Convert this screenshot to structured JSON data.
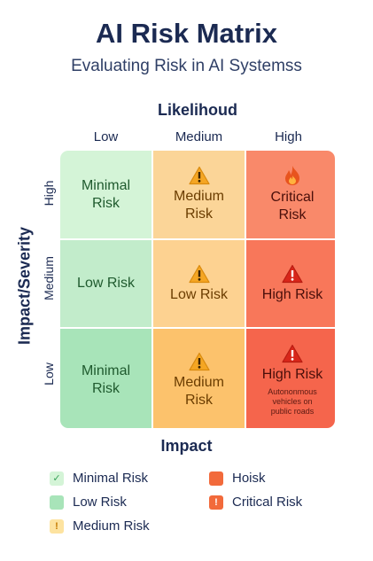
{
  "header": {
    "title": "AI Risk Matrix",
    "subtitle": "Evaluating Risk in AI Systemss"
  },
  "axes": {
    "x_title": "Likelihoud",
    "y_title": "Impact/Severity",
    "columns": [
      "Low",
      "Medium",
      "High"
    ],
    "rows": [
      "High",
      "Medium",
      "Low"
    ]
  },
  "matrix": {
    "cells": [
      [
        {
          "label": "Minimal\nRisk",
          "icon": "",
          "note": "",
          "color": "#d4f4d7"
        },
        {
          "label": "Medium\nRisk",
          "icon": "warning-icon",
          "note": "",
          "color": "#fbd598"
        },
        {
          "label": "Critical\nRisk",
          "icon": "flame-icon",
          "note": "",
          "color": "#f9896a"
        }
      ],
      [
        {
          "label": "Low Risk",
          "icon": "",
          "note": "",
          "color": "#c2eccb"
        },
        {
          "label": "Low Risk",
          "icon": "warning-icon",
          "note": "",
          "color": "#fdd291"
        },
        {
          "label": "High Risk",
          "icon": "warning-icon",
          "note": "",
          "color": "#f8775a"
        }
      ],
      [
        {
          "label": "Minimal\nRisk",
          "icon": "",
          "note": "",
          "color": "#a8e4b9"
        },
        {
          "label": "Medium\nRisk",
          "icon": "warning-icon",
          "note": "",
          "color": "#fcc26c"
        },
        {
          "label": "High Risk",
          "icon": "warning-icon",
          "note": "Autononmous\nvehicles on\npublic roads",
          "color": "#f5654c"
        }
      ]
    ]
  },
  "legend": {
    "title": "Impact",
    "items": [
      {
        "label": "Minimal Risk",
        "color": "#d4f4d7",
        "mark": "✓",
        "mark_color": "#3aa35a"
      },
      {
        "label": "Hoisk",
        "color": "#f26a3b",
        "mark": "",
        "mark_color": "#ffffff"
      },
      {
        "label": "Low Risk",
        "color": "#a8e4b9",
        "mark": "",
        "mark_color": "#ffffff"
      },
      {
        "label": "Critical Risk",
        "color": "#f26a3b",
        "mark": "!",
        "mark_color": "#ffffff"
      },
      {
        "label": "Medium Risk",
        "color": "#fde3a0",
        "mark": "!",
        "mark_color": "#c47a00"
      }
    ]
  }
}
